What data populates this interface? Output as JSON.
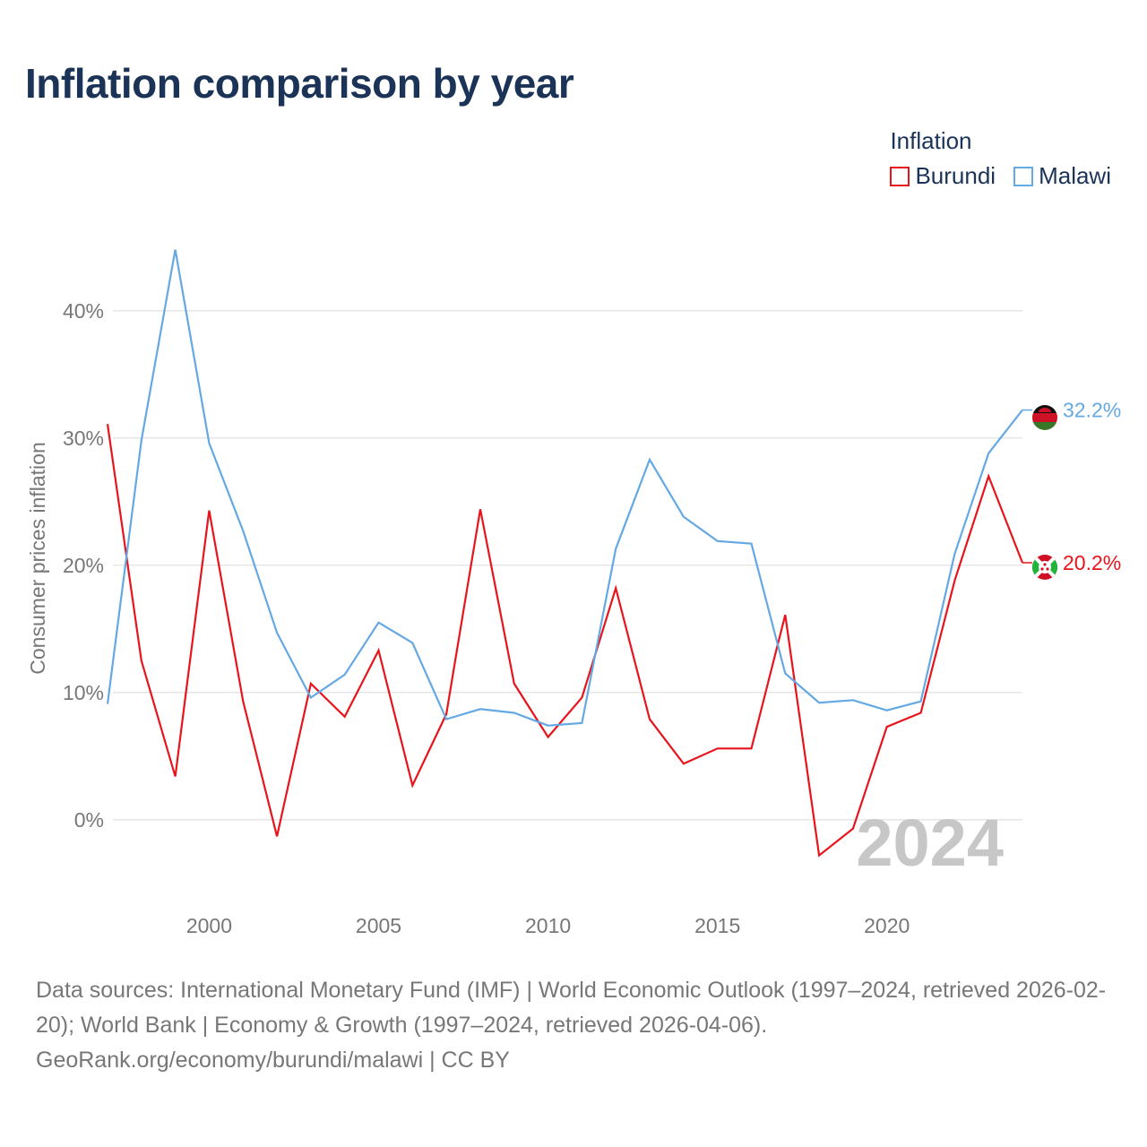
{
  "title": "Inflation comparison by year",
  "legend": {
    "title": "Inflation",
    "items": [
      {
        "label": "Burundi",
        "color": "#e8141c"
      },
      {
        "label": "Malawi",
        "color": "#64a8e4"
      }
    ]
  },
  "source": {
    "line1": "Data sources: International Monetary Fund (IMF) | World Economic Outlook (1997–2024, retrieved 2026-02-20); World Bank | Economy & Growth (1997–2024, retrieved 2026-04-06).",
    "line2": "GeoRank.org/economy/burundi/malawi | CC BY"
  },
  "chart_data": {
    "type": "line",
    "ylabel": "Consumer prices inflation",
    "xlabel": "",
    "year_watermark": "2024",
    "xlim": [
      1997,
      2024
    ],
    "ylim": [
      -6,
      44
    ],
    "x_ticks": [
      2000,
      2005,
      2010,
      2015,
      2020
    ],
    "x_tick_labels": [
      "2000",
      "2005",
      "2010",
      "2015",
      "2020"
    ],
    "y_ticks": [
      0,
      10,
      20,
      30,
      40
    ],
    "y_tick_labels": [
      "0%",
      "10%",
      "20%",
      "30%",
      "40%"
    ],
    "x": [
      1997,
      1998,
      1999,
      2000,
      2001,
      2002,
      2003,
      2004,
      2005,
      2006,
      2007,
      2008,
      2009,
      2010,
      2011,
      2012,
      2013,
      2014,
      2015,
      2016,
      2017,
      2018,
      2019,
      2020,
      2021,
      2022,
      2023,
      2024
    ],
    "series": [
      {
        "name": "Burundi",
        "color": "#e8141c",
        "end_label": "20.2%",
        "flag": "burundi-flag",
        "values": [
          31.1,
          12.5,
          3.4,
          24.3,
          9.3,
          -1.3,
          10.7,
          8.1,
          13.3,
          2.7,
          8.3,
          24.4,
          10.7,
          6.5,
          9.6,
          18.2,
          7.9,
          4.4,
          5.6,
          5.6,
          16.1,
          -2.8,
          -0.7,
          7.3,
          8.4,
          18.8,
          27.0,
          20.2
        ]
      },
      {
        "name": "Malawi",
        "color": "#64a8e4",
        "end_label": "32.2%",
        "flag": "malawi-flag",
        "values": [
          9.1,
          29.8,
          44.8,
          29.6,
          22.7,
          14.7,
          9.6,
          11.4,
          15.5,
          13.9,
          7.9,
          8.7,
          8.4,
          7.4,
          7.6,
          21.3,
          28.3,
          23.8,
          21.9,
          21.7,
          11.5,
          9.2,
          9.4,
          8.6,
          9.3,
          20.9,
          28.8,
          32.2
        ]
      }
    ]
  }
}
